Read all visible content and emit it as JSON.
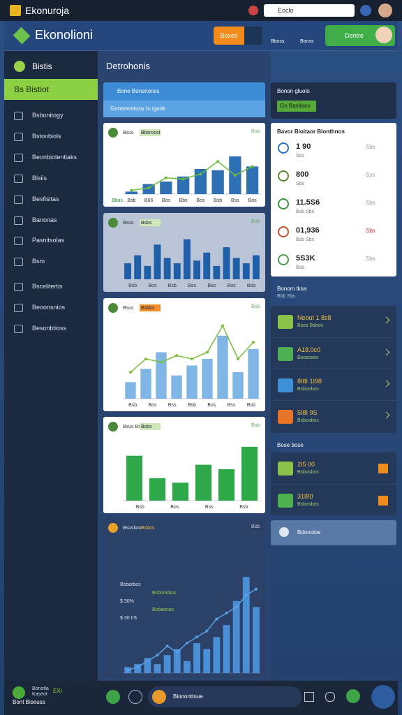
{
  "topbar": {
    "title": "Ekonuroja",
    "search": "Eoclo"
  },
  "header": {
    "logo": "Ekonolioni",
    "button": "Boxes",
    "icon_labels": [
      "Bboss",
      "Bonss"
    ],
    "profile": "Dentre"
  },
  "sidebar": {
    "title": "Bistis",
    "active": "Bs Bistiot",
    "items": [
      "Bsbonitogy",
      "Bstonbiols",
      "Beonbiotentiaks",
      "Bisiis",
      "Besfisitas",
      "Banonas",
      "Pasnitsolas",
      "Bsm",
      "Bscelitertis",
      "Beoonsnios",
      "Besonbtioss"
    ],
    "footer": {
      "title": "Bonotla",
      "sub": "Kaseot",
      "badge": "EXI",
      "link": "Bont Biseuss"
    }
  },
  "main": {
    "heading": "Detrohonis",
    "filter": {
      "title": "Bone Bonsnonss",
      "select": "Gonsinostuoy to iguds"
    },
    "charts": [
      {
        "title": "Bsus",
        "badge": "Bbsroost",
        "corner": "Bsb",
        "legend": "Bbas",
        "series": [
          {
            "type": "bar",
            "color": "#2f6fb3",
            "values": [
              2,
              8,
              10,
              14,
              20,
              19,
              30,
              22
            ]
          },
          {
            "type": "line",
            "color": "#6cbb3c",
            "values": [
              3,
              5,
              13,
              12,
              16,
              26,
              15,
              22
            ]
          }
        ],
        "ylim": [
          0,
          40
        ],
        "x_labels": [
          "Bsb",
          "B66",
          "Bos",
          "Bbs",
          "Bos",
          "Bsb",
          "Bss",
          "Bos"
        ]
      },
      {
        "title": "Bsus",
        "badge": "Bsbs",
        "corner": "Bsb",
        "series": [
          {
            "type": "bar",
            "color": "#1f5fa8",
            "values": [
              12,
              18,
              10,
              26,
              16,
              12,
              30,
              14,
              20,
              10,
              24,
              16,
              12,
              18
            ]
          }
        ],
        "ylim": [
          0,
          34
        ],
        "x_labels": [
          "Bsb",
          "Bos",
          "Bsb",
          "Bss",
          "Bss",
          "Bos",
          "Bsb"
        ]
      },
      {
        "title": "Bsus",
        "badge": "Bsbbs",
        "corner": "Bsb",
        "series": [
          {
            "type": "bar",
            "color": "#7fb6e6",
            "values": [
              10,
              18,
              28,
              14,
              20,
              24,
              38,
              16,
              30
            ]
          },
          {
            "type": "line",
            "color": "#7bbf3a",
            "values": [
              16,
              24,
              22,
              26,
              24,
              28,
              44,
              24,
              34
            ]
          }
        ],
        "ylim": [
          0,
          48
        ],
        "x_labels": [
          "Bsb",
          "Bos",
          "Bss",
          "Bsb",
          "Bos",
          "Bss",
          "Bsb"
        ]
      },
      {
        "title": "Bsus Bsbs",
        "badge": "Bsbs",
        "corner": "Bsb",
        "series": [
          {
            "type": "bar",
            "color": "#2fa84a",
            "values": [
              20,
              10,
              8,
              16,
              14,
              24
            ]
          }
        ],
        "ylim": [
          0,
          28
        ],
        "x_labels": [
          "Bsb",
          "Bos",
          "Bss",
          "Bsb"
        ]
      },
      {
        "title": "Bsuskos",
        "badge": "Bsbos",
        "corner": "Bsb",
        "series": [
          {
            "type": "bar",
            "color": "#4a8fd6",
            "values": [
              2,
              3,
              5,
              3,
              6,
              8,
              4,
              10,
              8,
              12,
              16,
              24,
              32,
              22
            ]
          },
          {
            "type": "line",
            "color": "#5aa0e6",
            "values": [
              1,
              2,
              4,
              6,
              9,
              7,
              10,
              12,
              14,
              18,
              20,
              22,
              26,
              28
            ]
          }
        ],
        "ylim": [
          0,
          40
        ],
        "x_labels": [],
        "notes": [
          "Bsbarbos",
          "Bsbonsbos",
          "$ 30%",
          "Bsbaonos",
          "$ 30 IIS"
        ]
      }
    ]
  },
  "right": {
    "filter": {
      "title": "Bonon gluolo",
      "select": "Go Bastiaos"
    },
    "stats": {
      "title": "Bavor Bioitaor Bionthnos",
      "rows": [
        {
          "value": "1 90",
          "sub": "Sss",
          "side": "Sbs"
        },
        {
          "value": "800",
          "sub": "Sbs",
          "side": "Sss"
        },
        {
          "value": "11.5S6",
          "sub": "Bsb Sbs",
          "side": "Sbs"
        },
        {
          "value": "01,936",
          "sub": "Bsb Sbs",
          "side": "Sbs"
        },
        {
          "value": "5S3K",
          "sub": "Bsb",
          "side": "Sbs"
        }
      ]
    },
    "section": {
      "title": "Bonom tksa",
      "sub": "Bbb Sbs"
    },
    "list": [
      {
        "title": "Neout 1 8s8",
        "sub": "Bsos Bsbos"
      },
      {
        "title": "A18.0c0",
        "sub": "Bsososos"
      },
      {
        "title": "8I8I 1I98",
        "sub": "Bsbosbos"
      },
      {
        "title": "5I8I 9S",
        "sub": "Bsbosbos"
      }
    ],
    "section2": "Bose bose",
    "list2": [
      {
        "title": "2I5 00",
        "sub": "Bsbosbos"
      },
      {
        "title": "318I0",
        "sub": "Bsbosbos"
      }
    ],
    "card": "Bdonoios"
  },
  "bottom": {
    "label": "Biononttoue"
  }
}
